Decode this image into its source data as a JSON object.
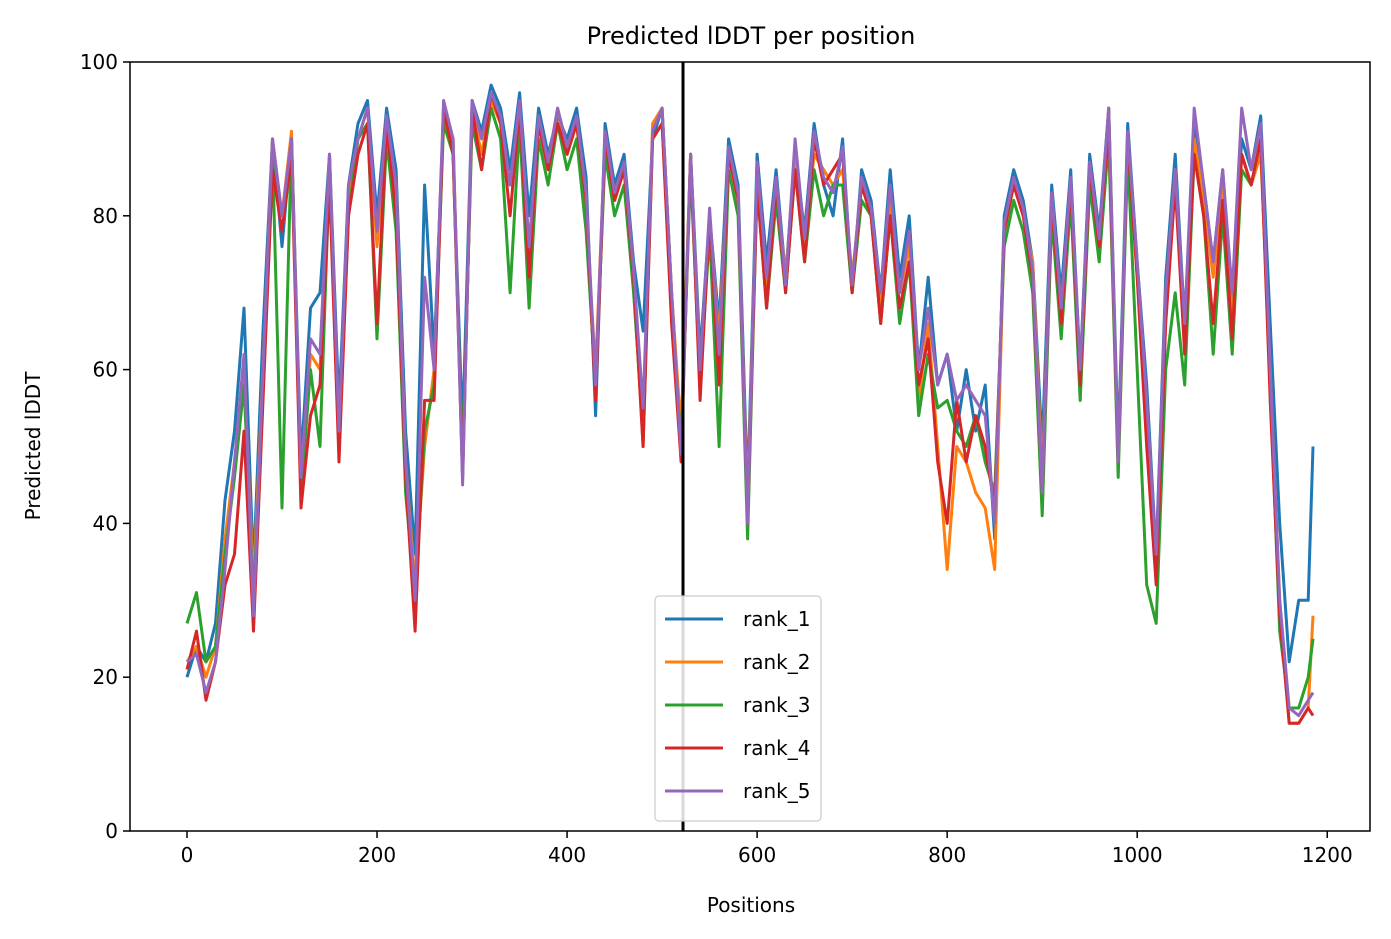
{
  "chart_data": {
    "type": "line",
    "title": "Predicted lDDT per position",
    "xlabel": "Positions",
    "ylabel": "Predicted lDDT",
    "xlim": [
      -60,
      1245
    ],
    "ylim": [
      0,
      100
    ],
    "xticks": [
      0,
      200,
      400,
      600,
      800,
      1000,
      1200
    ],
    "yticks": [
      0,
      20,
      40,
      60,
      80,
      100
    ],
    "grid": false,
    "legend_position": "lower center",
    "vline_x": 522,
    "series": [
      {
        "name": "rank_1",
        "color": "#1f77b4",
        "x": [
          0,
          10,
          20,
          30,
          40,
          50,
          60,
          70,
          80,
          90,
          100,
          110,
          120,
          130,
          140,
          150,
          160,
          170,
          180,
          190,
          200,
          210,
          220,
          230,
          240,
          250,
          260,
          270,
          280,
          290,
          300,
          310,
          320,
          330,
          340,
          350,
          360,
          370,
          380,
          390,
          400,
          410,
          420,
          430,
          440,
          450,
          460,
          470,
          480,
          490,
          500,
          510,
          520,
          530,
          540,
          550,
          560,
          570,
          580,
          590,
          600,
          610,
          620,
          630,
          640,
          650,
          660,
          670,
          680,
          690,
          700,
          710,
          720,
          730,
          740,
          750,
          760,
          770,
          780,
          790,
          800,
          810,
          820,
          830,
          840,
          850,
          860,
          870,
          880,
          890,
          900,
          910,
          920,
          930,
          940,
          950,
          960,
          970,
          980,
          990,
          1000,
          1010,
          1020,
          1030,
          1040,
          1050,
          1060,
          1070,
          1080,
          1090,
          1100,
          1110,
          1120,
          1130,
          1140,
          1150,
          1160,
          1170,
          1180,
          1185
        ],
        "y": [
          20,
          24,
          22,
          27,
          43,
          52,
          68,
          34,
          65,
          90,
          76,
          90,
          48,
          68,
          70,
          88,
          55,
          84,
          92,
          95,
          80,
          94,
          86,
          52,
          36,
          84,
          62,
          93,
          88,
          52,
          95,
          91,
          97,
          94,
          86,
          96,
          80,
          94,
          88,
          93,
          90,
          94,
          85,
          54,
          92,
          84,
          88,
          74,
          65,
          90,
          94,
          70,
          50,
          88,
          62,
          80,
          66,
          90,
          84,
          44,
          88,
          74,
          86,
          72,
          88,
          78,
          92,
          84,
          80,
          90,
          70,
          86,
          82,
          70,
          86,
          72,
          80,
          60,
          72,
          58,
          62,
          52,
          60,
          52,
          58,
          38,
          80,
          86,
          82,
          74,
          50,
          84,
          70,
          86,
          60,
          88,
          78,
          94,
          50,
          92,
          74,
          58,
          36,
          72,
          88,
          66,
          92,
          84,
          74,
          86,
          68,
          90,
          86,
          93,
          66,
          40,
          22,
          30,
          30,
          50
        ]
      },
      {
        "name": "rank_2",
        "color": "#ff7f0e",
        "x": [
          0,
          10,
          20,
          30,
          40,
          50,
          60,
          70,
          80,
          90,
          100,
          110,
          120,
          130,
          140,
          150,
          160,
          170,
          180,
          190,
          200,
          210,
          220,
          230,
          240,
          250,
          260,
          270,
          280,
          290,
          300,
          310,
          320,
          330,
          340,
          350,
          360,
          370,
          380,
          390,
          400,
          410,
          420,
          430,
          440,
          450,
          460,
          470,
          480,
          490,
          500,
          510,
          520,
          530,
          540,
          550,
          560,
          570,
          580,
          590,
          600,
          610,
          620,
          630,
          640,
          650,
          660,
          670,
          680,
          690,
          700,
          710,
          720,
          730,
          740,
          750,
          760,
          770,
          780,
          790,
          800,
          810,
          820,
          830,
          840,
          850,
          860,
          870,
          880,
          890,
          900,
          910,
          920,
          930,
          940,
          950,
          960,
          970,
          980,
          990,
          1000,
          1010,
          1020,
          1030,
          1040,
          1050,
          1060,
          1070,
          1080,
          1090,
          1100,
          1110,
          1120,
          1130,
          1140,
          1150,
          1160,
          1170,
          1180,
          1185
        ],
        "y": [
          22,
          24,
          20,
          24,
          38,
          48,
          60,
          32,
          60,
          90,
          80,
          91,
          44,
          62,
          60,
          88,
          50,
          82,
          90,
          94,
          76,
          92,
          84,
          48,
          32,
          50,
          60,
          94,
          90,
          46,
          94,
          88,
          95,
          92,
          84,
          92,
          74,
          92,
          86,
          94,
          88,
          92,
          80,
          60,
          90,
          82,
          86,
          72,
          50,
          92,
          94,
          70,
          52,
          88,
          60,
          80,
          64,
          88,
          82,
          42,
          86,
          70,
          84,
          72,
          88,
          76,
          88,
          86,
          84,
          86,
          72,
          84,
          80,
          68,
          82,
          70,
          76,
          56,
          66,
          50,
          34,
          50,
          48,
          44,
          42,
          34,
          78,
          84,
          80,
          74,
          46,
          82,
          68,
          84,
          58,
          86,
          76,
          94,
          48,
          90,
          72,
          55,
          34,
          70,
          86,
          64,
          90,
          82,
          72,
          84,
          66,
          88,
          84,
          88,
          60,
          30,
          14,
          14,
          16,
          28
        ]
      },
      {
        "name": "rank_3",
        "color": "#2ca02c",
        "x": [
          0,
          10,
          20,
          30,
          40,
          50,
          60,
          70,
          80,
          90,
          100,
          110,
          120,
          130,
          140,
          150,
          160,
          170,
          180,
          190,
          200,
          210,
          220,
          230,
          240,
          250,
          260,
          270,
          280,
          290,
          300,
          310,
          320,
          330,
          340,
          350,
          360,
          370,
          380,
          390,
          400,
          410,
          420,
          430,
          440,
          450,
          460,
          470,
          480,
          490,
          500,
          510,
          520,
          530,
          540,
          550,
          560,
          570,
          580,
          590,
          600,
          610,
          620,
          630,
          640,
          650,
          660,
          670,
          680,
          690,
          700,
          710,
          720,
          730,
          740,
          750,
          760,
          770,
          780,
          790,
          800,
          810,
          820,
          830,
          840,
          850,
          860,
          870,
          880,
          890,
          900,
          910,
          920,
          930,
          940,
          950,
          960,
          970,
          980,
          990,
          1000,
          1010,
          1020,
          1030,
          1040,
          1050,
          1060,
          1070,
          1080,
          1090,
          1100,
          1110,
          1120,
          1130,
          1140,
          1150,
          1160,
          1170,
          1180,
          1185
        ],
        "y": [
          27,
          31,
          22,
          24,
          36,
          46,
          58,
          30,
          58,
          88,
          42,
          90,
          44,
          60,
          50,
          86,
          50,
          80,
          90,
          92,
          64,
          90,
          78,
          44,
          30,
          52,
          58,
          92,
          88,
          48,
          92,
          86,
          94,
          90,
          70,
          92,
          68,
          90,
          84,
          92,
          86,
          90,
          78,
          58,
          88,
          80,
          84,
          70,
          52,
          90,
          92,
          68,
          50,
          86,
          58,
          78,
          50,
          86,
          80,
          38,
          84,
          68,
          82,
          70,
          86,
          74,
          86,
          80,
          84,
          84,
          70,
          82,
          80,
          66,
          80,
          66,
          74,
          54,
          62,
          55,
          56,
          52,
          50,
          54,
          48,
          44,
          76,
          82,
          78,
          70,
          41,
          80,
          64,
          82,
          56,
          84,
          74,
          90,
          46,
          88,
          60,
          32,
          27,
          60,
          70,
          58,
          88,
          80,
          62,
          80,
          62,
          86,
          84,
          90,
          58,
          26,
          16,
          16,
          20,
          25
        ]
      },
      {
        "name": "rank_4",
        "color": "#d62728",
        "x": [
          0,
          10,
          20,
          30,
          40,
          50,
          60,
          70,
          80,
          90,
          100,
          110,
          120,
          130,
          140,
          150,
          160,
          170,
          180,
          190,
          200,
          210,
          220,
          230,
          240,
          250,
          260,
          270,
          280,
          290,
          300,
          310,
          320,
          330,
          340,
          350,
          360,
          370,
          380,
          390,
          400,
          410,
          420,
          430,
          440,
          450,
          460,
          470,
          480,
          490,
          500,
          510,
          520,
          530,
          540,
          550,
          560,
          570,
          580,
          590,
          600,
          610,
          620,
          630,
          640,
          650,
          660,
          670,
          680,
          690,
          700,
          710,
          720,
          730,
          740,
          750,
          760,
          770,
          780,
          790,
          800,
          810,
          820,
          830,
          840,
          850,
          860,
          870,
          880,
          890,
          900,
          910,
          920,
          930,
          940,
          950,
          960,
          970,
          980,
          990,
          1000,
          1010,
          1020,
          1030,
          1040,
          1050,
          1060,
          1070,
          1080,
          1090,
          1100,
          1110,
          1120,
          1130,
          1140,
          1150,
          1160,
          1170,
          1180,
          1185
        ],
        "y": [
          21,
          26,
          17,
          22,
          32,
          36,
          52,
          26,
          56,
          86,
          78,
          88,
          42,
          54,
          58,
          84,
          48,
          80,
          88,
          92,
          66,
          92,
          80,
          46,
          26,
          56,
          56,
          94,
          88,
          46,
          94,
          86,
          96,
          92,
          80,
          94,
          72,
          92,
          86,
          92,
          88,
          92,
          82,
          56,
          90,
          82,
          86,
          72,
          50,
          90,
          92,
          66,
          48,
          88,
          56,
          80,
          58,
          88,
          82,
          40,
          84,
          68,
          84,
          70,
          86,
          74,
          90,
          84,
          86,
          88,
          70,
          84,
          80,
          66,
          80,
          68,
          74,
          58,
          64,
          48,
          40,
          56,
          48,
          54,
          50,
          42,
          78,
          84,
          80,
          72,
          44,
          82,
          66,
          84,
          58,
          86,
          76,
          92,
          48,
          90,
          72,
          50,
          32,
          66,
          84,
          62,
          88,
          80,
          66,
          82,
          64,
          88,
          84,
          90,
          56,
          28,
          14,
          14,
          16,
          15
        ]
      },
      {
        "name": "rank_5",
        "color": "#9467bd",
        "x": [
          0,
          10,
          20,
          30,
          40,
          50,
          60,
          70,
          80,
          90,
          100,
          110,
          120,
          130,
          140,
          150,
          160,
          170,
          180,
          190,
          200,
          210,
          220,
          230,
          240,
          250,
          260,
          270,
          280,
          290,
          300,
          310,
          320,
          330,
          340,
          350,
          360,
          370,
          380,
          390,
          400,
          410,
          420,
          430,
          440,
          450,
          460,
          470,
          480,
          490,
          500,
          510,
          520,
          530,
          540,
          550,
          560,
          570,
          580,
          590,
          600,
          610,
          620,
          630,
          640,
          650,
          660,
          670,
          680,
          690,
          700,
          710,
          720,
          730,
          740,
          750,
          760,
          770,
          780,
          790,
          800,
          810,
          820,
          830,
          840,
          850,
          860,
          870,
          880,
          890,
          900,
          910,
          920,
          930,
          940,
          950,
          960,
          970,
          980,
          990,
          1000,
          1010,
          1020,
          1030,
          1040,
          1050,
          1060,
          1070,
          1080,
          1090,
          1100,
          1110,
          1120,
          1130,
          1140,
          1150,
          1160,
          1170,
          1180,
          1185
        ],
        "y": [
          22,
          23,
          18,
          22,
          34,
          48,
          62,
          28,
          60,
          90,
          80,
          90,
          46,
          64,
          62,
          88,
          52,
          84,
          90,
          94,
          78,
          93,
          84,
          48,
          30,
          72,
          60,
          95,
          90,
          45,
          95,
          90,
          96,
          93,
          84,
          95,
          76,
          93,
          87,
          94,
          89,
          93,
          83,
          58,
          91,
          83,
          87,
          73,
          55,
          91,
          94,
          70,
          49,
          88,
          60,
          81,
          62,
          89,
          83,
          40,
          87,
          72,
          85,
          71,
          90,
          77,
          91,
          85,
          83,
          89,
          71,
          85,
          81,
          70,
          84,
          70,
          78,
          60,
          68,
          58,
          62,
          56,
          58,
          56,
          54,
          40,
          79,
          85,
          81,
          73,
          44,
          83,
          68,
          85,
          60,
          87,
          77,
          94,
          48,
          91,
          74,
          56,
          36,
          70,
          86,
          66,
          94,
          84,
          74,
          86,
          70,
          94,
          86,
          92,
          60,
          30,
          16,
          15,
          17,
          18
        ]
      }
    ]
  }
}
